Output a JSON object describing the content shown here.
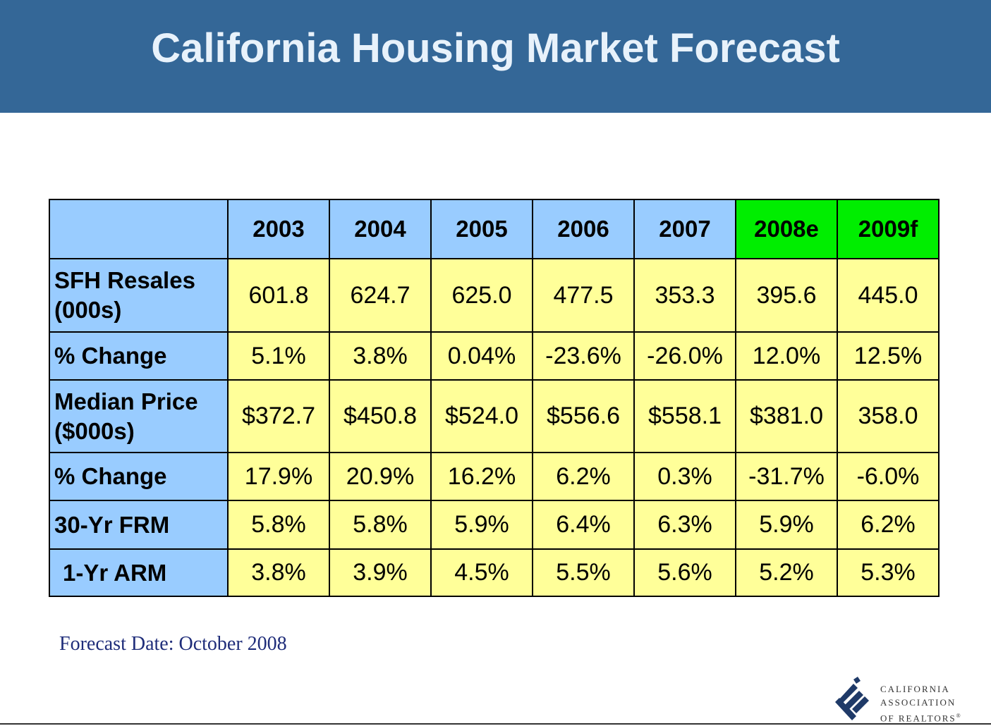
{
  "header": {
    "title": "California Housing Market Forecast",
    "background_color": "#346797"
  },
  "table": {
    "columns": [
      "2003",
      "2004",
      "2005",
      "2006",
      "2007",
      "2008e",
      "2009f"
    ],
    "forecast_columns": [
      "2008e",
      "2009f"
    ],
    "rows": [
      {
        "label_line1": "SFH Resales",
        "label_line2": "(000s)",
        "values": [
          "601.8",
          "624.7",
          "625.0",
          "477.5",
          "353.3",
          "395.6",
          "445.0"
        ]
      },
      {
        "label_line1": "% Change",
        "label_line2": "",
        "values": [
          "5.1%",
          "3.8%",
          "0.04%",
          "-23.6%",
          "-26.0%",
          "12.0%",
          "12.5%"
        ]
      },
      {
        "label_line1": "Median Price",
        "label_line2": "($000s)",
        "values": [
          "$372.7",
          "$450.8",
          "$524.0",
          "$556.6",
          "$558.1",
          "$381.0",
          "358.0"
        ]
      },
      {
        "label_line1": "% Change",
        "label_line2": "",
        "values": [
          "17.9%",
          "20.9%",
          "16.2%",
          "6.2%",
          "0.3%",
          "-31.7%",
          "-6.0%"
        ]
      },
      {
        "label_line1": "30-Yr FRM",
        "label_line2": "",
        "values": [
          "5.8%",
          "5.8%",
          "5.9%",
          "6.4%",
          "6.3%",
          "5.9%",
          "6.2%"
        ]
      },
      {
        "label_line1": "1-Yr ARM",
        "label_line2": "",
        "values": [
          "3.8%",
          "3.9%",
          "4.5%",
          "5.5%",
          "5.6%",
          "5.2%",
          "5.3%"
        ]
      }
    ],
    "colors": {
      "header_blue": "#99ccff",
      "forecast_green": "#00ee00",
      "cell_yellow": "#ffff99"
    }
  },
  "footnote": "Forecast Date: October 2008",
  "logo": {
    "line1": "CALIFORNIA",
    "line2": "ASSOCIATION",
    "line3": "OF REALTORS",
    "mark": "®",
    "icon": "car-emblem-icon"
  }
}
